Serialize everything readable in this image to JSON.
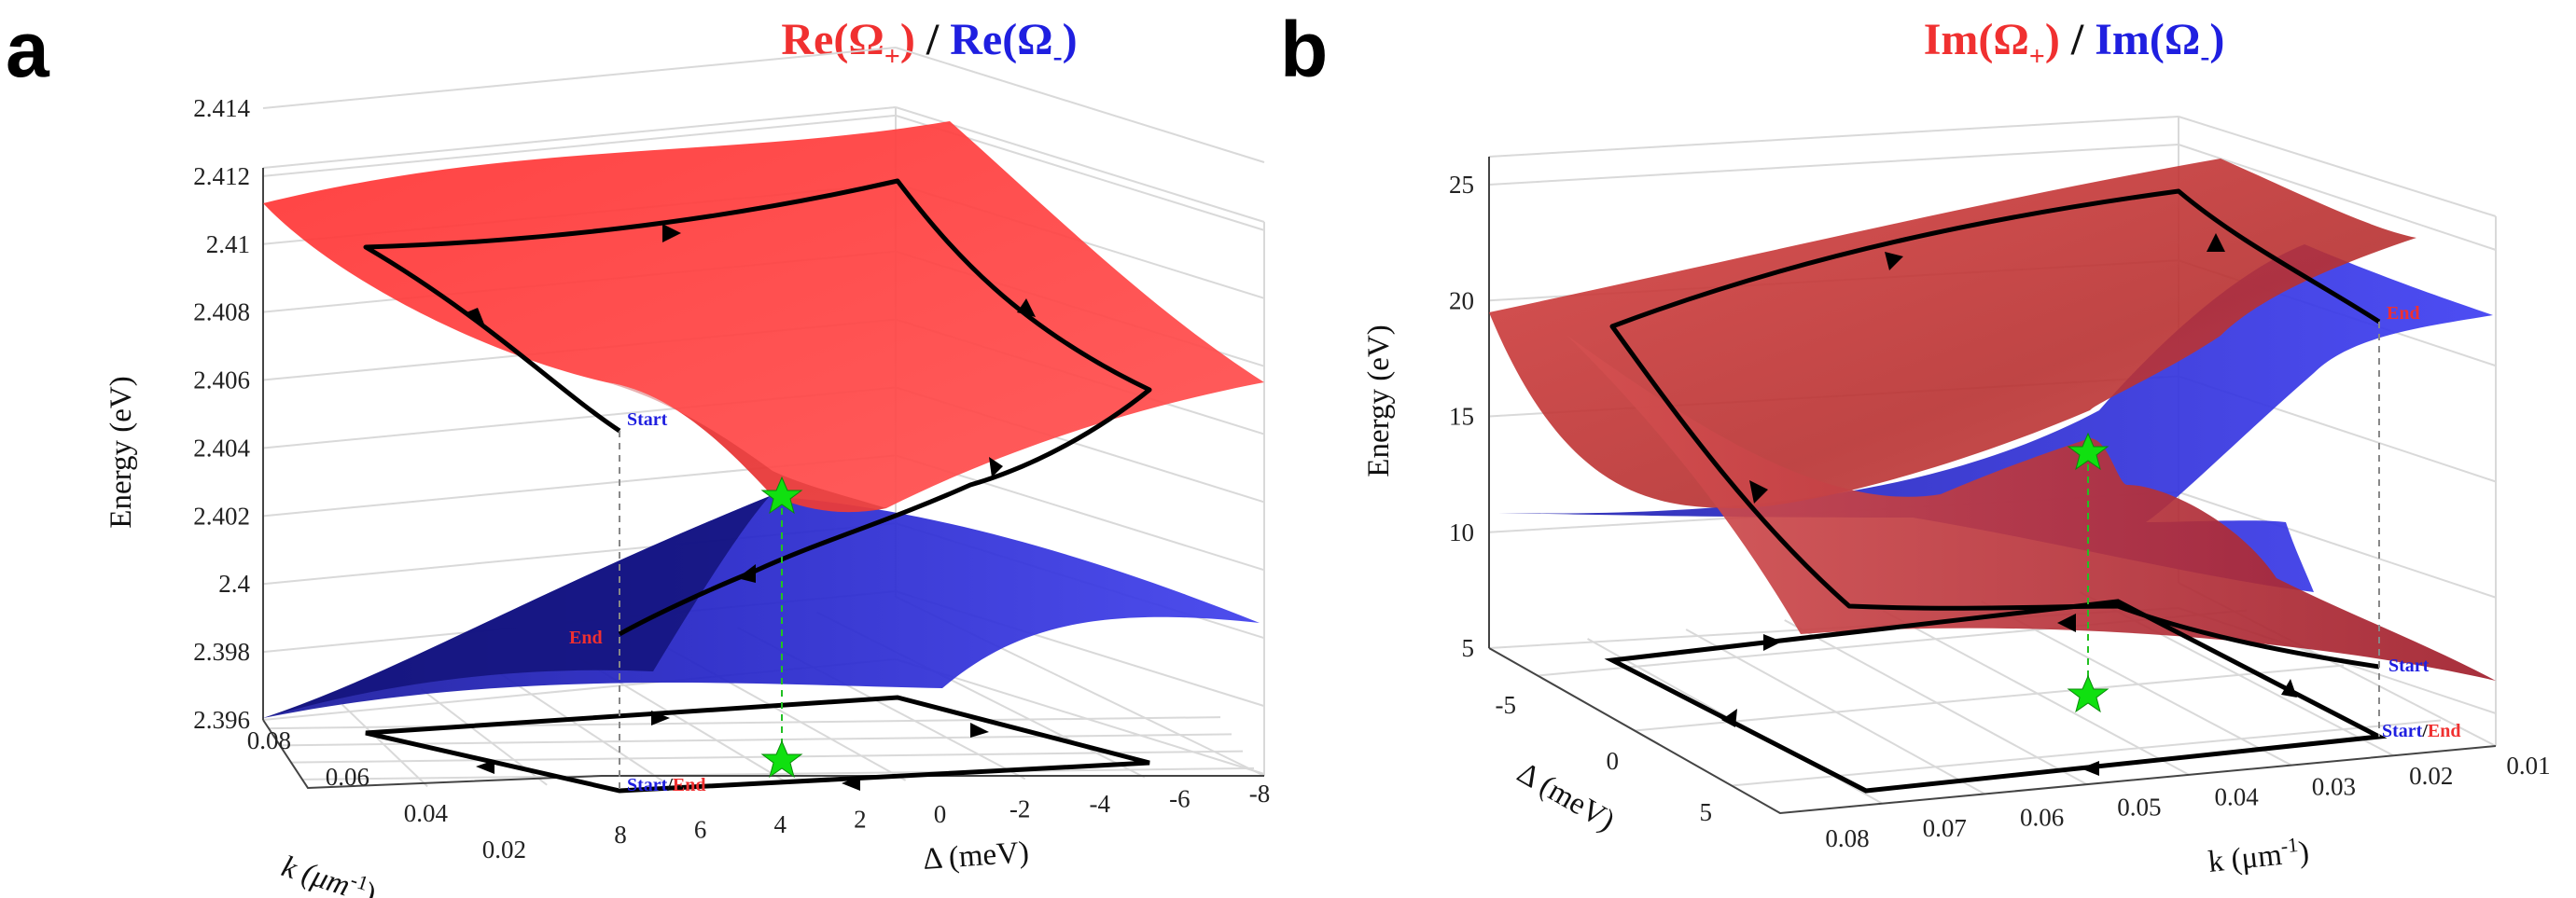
{
  "panels": {
    "a": {
      "label": "a",
      "title": {
        "re_plus": "Re(Ω",
        "plus_sub": "+",
        "slash": " / ",
        "re_minus": "Re(Ω",
        "minus_sub": "-",
        "close": ")"
      },
      "zlabel": "Energy (eV)",
      "xlabel": "k (μm",
      "xlabel_sup": "-1",
      "xlabel_close": ")",
      "ylabel": "Δ (meV)",
      "z_ticks": [
        "2.414",
        "2.412",
        "2.41",
        "2.408",
        "2.406",
        "2.404",
        "2.402",
        "2.4",
        "2.398",
        "2.396"
      ],
      "k_ticks": [
        "0.08",
        "0.06",
        "0.04",
        "0.02"
      ],
      "delta_ticks": [
        "8",
        "6",
        "4",
        "2",
        "0",
        "-2",
        "-4",
        "-6",
        "-8"
      ],
      "start_label": "Start",
      "end_label": "End",
      "startend_start": "Start",
      "startend_slash": "/",
      "startend_end": "End"
    },
    "b": {
      "label": "b",
      "title": {
        "re_plus": "Im(Ω",
        "plus_sub": "+",
        "slash": " / ",
        "re_minus": "Im(Ω",
        "minus_sub": "-",
        "close": ")"
      },
      "zlabel": "Energy (eV)",
      "xlabel": "k (μm",
      "xlabel_sup": "-1",
      "xlabel_close": ")",
      "ylabel": "Δ (meV)",
      "z_ticks": [
        "25",
        "20",
        "15",
        "10",
        "5"
      ],
      "k_ticks": [
        "0.08",
        "0.07",
        "0.06",
        "0.05",
        "0.04",
        "0.03",
        "0.02",
        "0.01"
      ],
      "delta_ticks": [
        "-5",
        "0",
        "5"
      ],
      "start_label": "Start",
      "end_label": "End",
      "startend_start": "Start",
      "startend_slash": "/",
      "startend_end": "End"
    }
  },
  "chart_data": [
    {
      "type": "surface",
      "panel": "a",
      "series": [
        {
          "name": "Re(Ω+)",
          "color": "#ff3b3b"
        },
        {
          "name": "Re(Ω-)",
          "color": "#3535e6"
        }
      ],
      "x_axis": "k (μm-1)",
      "x_range": [
        0.01,
        0.09
      ],
      "y_axis": "Δ (meV)",
      "y_range": [
        -8,
        8
      ],
      "z_axis": "Energy (eV)",
      "z_range": [
        2.396,
        2.414
      ],
      "exceptional_point_marker": "green-star",
      "loop_path": "encircles exceptional point"
    },
    {
      "type": "surface",
      "panel": "b",
      "series": [
        {
          "name": "Im(Ω+)",
          "color": "#c83232"
        },
        {
          "name": "Im(Ω-)",
          "color": "#3535e6"
        }
      ],
      "x_axis": "k (μm-1)",
      "x_range": [
        0.01,
        0.085
      ],
      "y_axis": "Δ (meV)",
      "y_range": [
        -8,
        8
      ],
      "z_axis": "Energy (eV)",
      "z_range": [
        5,
        25
      ],
      "exceptional_point_marker": "green-star",
      "loop_path": "encircles exceptional point"
    }
  ]
}
